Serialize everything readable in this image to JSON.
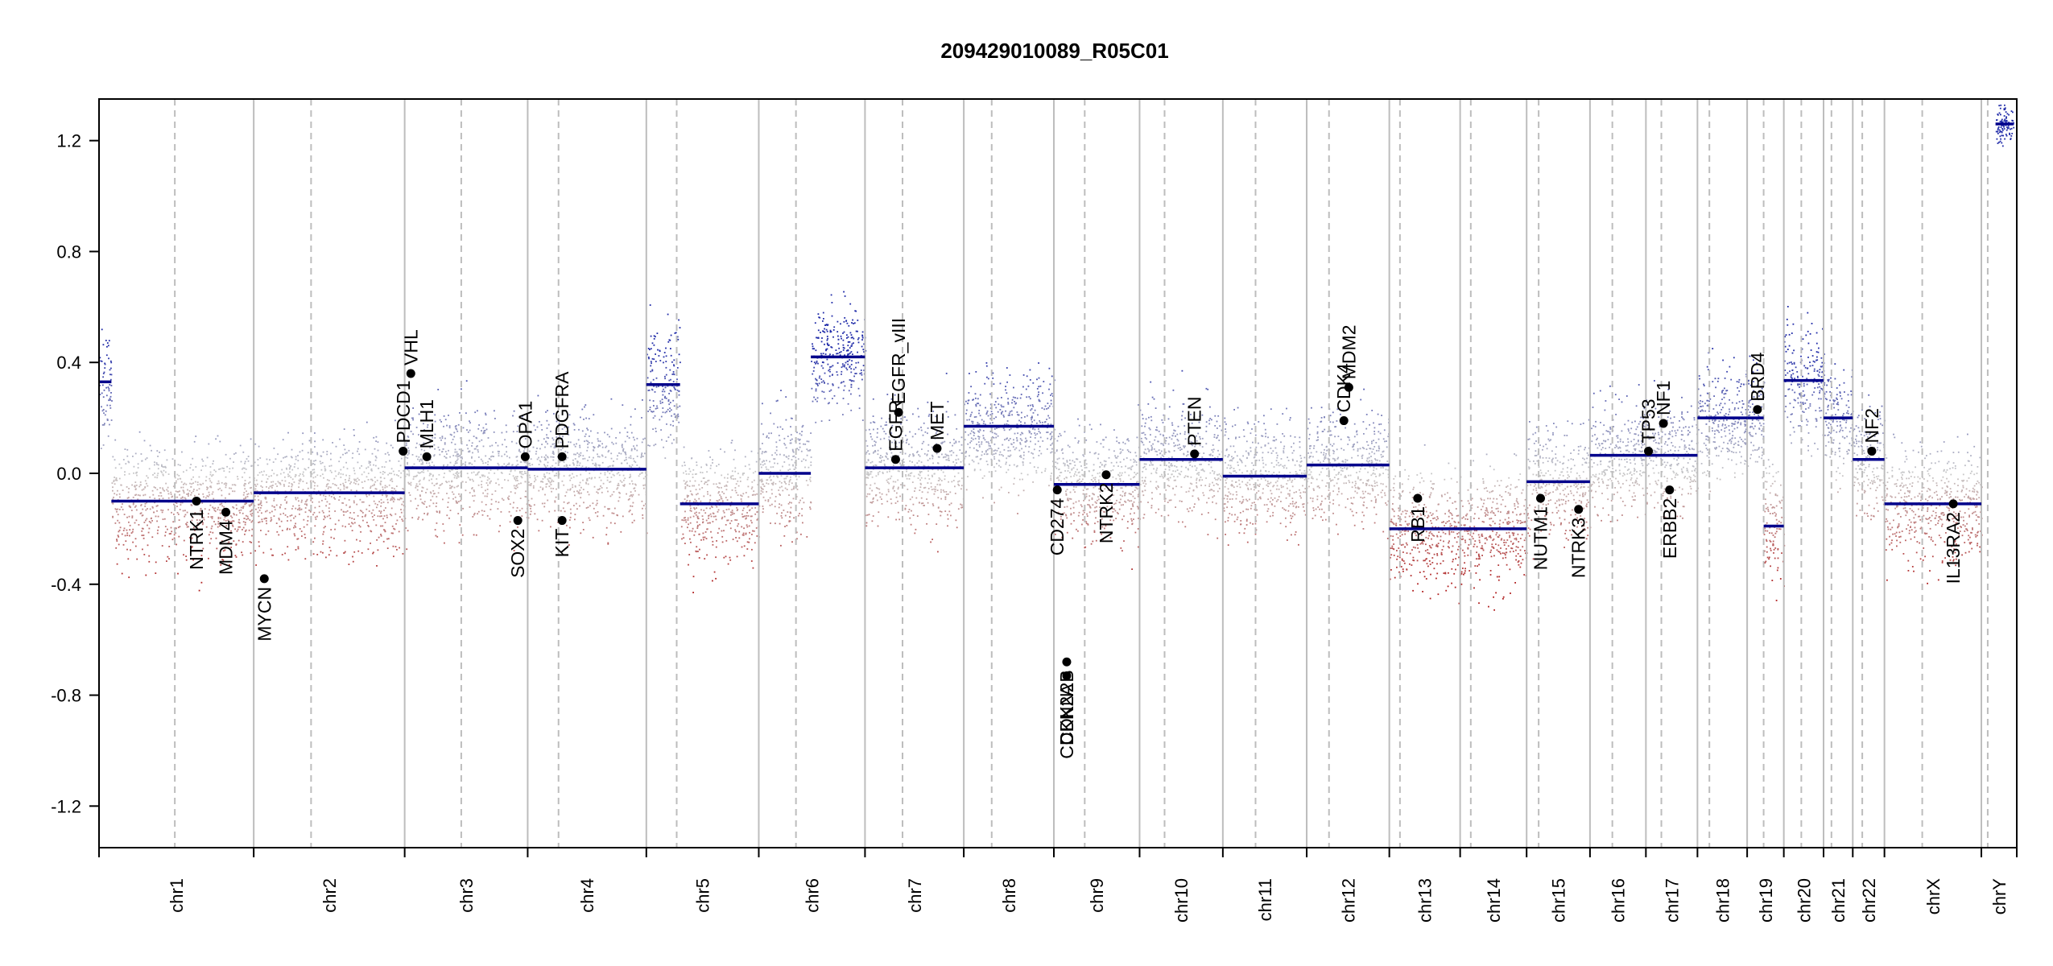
{
  "chart_data": {
    "type": "scatter",
    "title": "209429010089_R05C01",
    "xlabel": "",
    "ylabel": "",
    "ylim": [
      -1.35,
      1.35
    ],
    "y_ticks": [
      "-1.2",
      "-0.8",
      "-0.4",
      "0.0",
      "0.4",
      "0.8",
      "1.2"
    ],
    "y_tick_values": [
      -1.2,
      -0.8,
      -0.4,
      0.0,
      0.4,
      0.8,
      1.2
    ],
    "x_unit": "relative chromosome length (cumulative)",
    "chromosomes": [
      {
        "name": "chr1",
        "size": 249,
        "centromere": 0.49,
        "seg": [
          {
            "from": 0,
            "to": 0.08,
            "value": 0.33
          },
          {
            "from": 0.08,
            "to": 1,
            "value": -0.1
          }
        ]
      },
      {
        "name": "chr2",
        "size": 243,
        "centromere": 0.38,
        "seg": [
          {
            "from": 0,
            "to": 1,
            "value": -0.07
          }
        ]
      },
      {
        "name": "chr3",
        "size": 198,
        "centromere": 0.46,
        "seg": [
          {
            "from": 0,
            "to": 1,
            "value": 0.02
          }
        ]
      },
      {
        "name": "chr4",
        "size": 191,
        "centromere": 0.26,
        "seg": [
          {
            "from": 0,
            "to": 1,
            "value": 0.015
          }
        ]
      },
      {
        "name": "chr5",
        "size": 181,
        "centromere": 0.27,
        "seg": [
          {
            "from": 0,
            "to": 0.3,
            "value": 0.32
          },
          {
            "from": 0.3,
            "to": 1,
            "value": -0.11
          }
        ]
      },
      {
        "name": "chr6",
        "size": 171,
        "centromere": 0.35,
        "seg": [
          {
            "from": 0,
            "to": 0.49,
            "value": 0.0
          },
          {
            "from": 0.49,
            "to": 1,
            "value": 0.42
          }
        ]
      },
      {
        "name": "chr7",
        "size": 159,
        "centromere": 0.38,
        "seg": [
          {
            "from": 0,
            "to": 1,
            "value": 0.02
          }
        ]
      },
      {
        "name": "chr8",
        "size": 145,
        "centromere": 0.31,
        "seg": [
          {
            "from": 0,
            "to": 1,
            "value": 0.17
          }
        ]
      },
      {
        "name": "chr9",
        "size": 138,
        "centromere": 0.36,
        "seg": [
          {
            "from": 0,
            "to": 1,
            "value": -0.04
          }
        ]
      },
      {
        "name": "chr10",
        "size": 134,
        "centromere": 0.3,
        "seg": [
          {
            "from": 0,
            "to": 1,
            "value": 0.05
          }
        ]
      },
      {
        "name": "chr11",
        "size": 135,
        "centromere": 0.39,
        "seg": [
          {
            "from": 0,
            "to": 1,
            "value": -0.01
          }
        ]
      },
      {
        "name": "chr12",
        "size": 133,
        "centromere": 0.27,
        "seg": [
          {
            "from": 0,
            "to": 1,
            "value": 0.03
          }
        ]
      },
      {
        "name": "chr13",
        "size": 114,
        "centromere": 0.15,
        "seg": [
          {
            "from": 0,
            "to": 1,
            "value": -0.2
          }
        ]
      },
      {
        "name": "chr14",
        "size": 107,
        "centromere": 0.16,
        "seg": [
          {
            "from": 0,
            "to": 1,
            "value": -0.2
          }
        ]
      },
      {
        "name": "chr15",
        "size": 102,
        "centromere": 0.19,
        "seg": [
          {
            "from": 0,
            "to": 1,
            "value": -0.03
          }
        ]
      },
      {
        "name": "chr16",
        "size": 90,
        "centromere": 0.4,
        "seg": [
          {
            "from": 0,
            "to": 1,
            "value": 0.065
          }
        ]
      },
      {
        "name": "chr17",
        "size": 83,
        "centromere": 0.3,
        "seg": [
          {
            "from": 0,
            "to": 1,
            "value": 0.065
          }
        ]
      },
      {
        "name": "chr18",
        "size": 80,
        "centromere": 0.24,
        "seg": [
          {
            "from": 0,
            "to": 1,
            "value": 0.2
          }
        ]
      },
      {
        "name": "chr19",
        "size": 59,
        "centromere": 0.45,
        "seg": [
          {
            "from": 0,
            "to": 0.45,
            "value": 0.2
          },
          {
            "from": 0.45,
            "to": 1,
            "value": -0.19
          }
        ]
      },
      {
        "name": "chr20",
        "size": 64,
        "centromere": 0.44,
        "seg": [
          {
            "from": 0,
            "to": 1,
            "value": 0.335
          }
        ]
      },
      {
        "name": "chr21",
        "size": 47,
        "centromere": 0.27,
        "seg": [
          {
            "from": 0,
            "to": 1,
            "value": 0.2
          }
        ]
      },
      {
        "name": "chr22",
        "size": 51,
        "centromere": 0.3,
        "seg": [
          {
            "from": 0,
            "to": 1,
            "value": 0.05
          }
        ]
      },
      {
        "name": "chrX",
        "size": 156,
        "centromere": 0.39,
        "seg": [
          {
            "from": 0,
            "to": 1,
            "value": -0.11
          }
        ]
      },
      {
        "name": "chrY",
        "size": 57,
        "centromere": 0.18,
        "seg": [
          {
            "from": 0.4,
            "to": 0.9,
            "value": 1.26
          }
        ]
      }
    ],
    "genes": [
      {
        "name": "NTRK1",
        "chr": "chr1",
        "pos": 0.63,
        "value": -0.1,
        "label_side": "below"
      },
      {
        "name": "MDM4",
        "chr": "chr1",
        "pos": 0.82,
        "value": -0.14,
        "label_side": "below"
      },
      {
        "name": "MYCN",
        "chr": "chr2",
        "pos": 0.07,
        "value": -0.38,
        "label_side": "below"
      },
      {
        "name": "PDCD1",
        "chr": "chr2",
        "pos": 0.99,
        "value": 0.08,
        "label_side": "above"
      },
      {
        "name": "VHL",
        "chr": "chr3",
        "pos": 0.05,
        "value": 0.36,
        "label_side": "above"
      },
      {
        "name": "MLH1",
        "chr": "chr3",
        "pos": 0.18,
        "value": 0.06,
        "label_side": "above"
      },
      {
        "name": "SOX2",
        "chr": "chr3",
        "pos": 0.92,
        "value": -0.17,
        "label_side": "below"
      },
      {
        "name": "OPA1",
        "chr": "chr3",
        "pos": 0.98,
        "value": 0.06,
        "label_side": "above"
      },
      {
        "name": "PDGFRA",
        "chr": "chr4",
        "pos": 0.29,
        "value": 0.06,
        "label_side": "above"
      },
      {
        "name": "KIT",
        "chr": "chr4",
        "pos": 0.29,
        "value": -0.17,
        "label_side": "below"
      },
      {
        "name": "EGFR",
        "chr": "chr7",
        "pos": 0.31,
        "value": 0.05,
        "label_side": "above"
      },
      {
        "name": "EGFR_vIII",
        "chr": "chr7",
        "pos": 0.34,
        "value": 0.22,
        "label_side": "above"
      },
      {
        "name": "MET",
        "chr": "chr7",
        "pos": 0.73,
        "value": 0.09,
        "label_side": "above"
      },
      {
        "name": "CDKN2A",
        "chr": "chr9",
        "pos": 0.15,
        "value": -0.73,
        "label_side": "below"
      },
      {
        "name": "CDKN2B",
        "chr": "chr9",
        "pos": 0.15,
        "value": -0.68,
        "label_side": "below"
      },
      {
        "name": "CD274",
        "chr": "chr9",
        "pos": 0.04,
        "value": -0.06,
        "label_side": "below"
      },
      {
        "name": "NTRK2",
        "chr": "chr9",
        "pos": 0.61,
        "value": -0.005,
        "label_side": "below"
      },
      {
        "name": "PTEN",
        "chr": "chr10",
        "pos": 0.66,
        "value": 0.07,
        "label_side": "above"
      },
      {
        "name": "CDK4",
        "chr": "chr12",
        "pos": 0.45,
        "value": 0.19,
        "label_side": "above"
      },
      {
        "name": "MDM2",
        "chr": "chr12",
        "pos": 0.51,
        "value": 0.31,
        "label_side": "above"
      },
      {
        "name": "RB1",
        "chr": "chr13",
        "pos": 0.4,
        "value": -0.09,
        "label_side": "below"
      },
      {
        "name": "NUTM1",
        "chr": "chr15",
        "pos": 0.22,
        "value": -0.09,
        "label_side": "below"
      },
      {
        "name": "NTRK3",
        "chr": "chr15",
        "pos": 0.82,
        "value": -0.13,
        "label_side": "below"
      },
      {
        "name": "TP53",
        "chr": "chr17",
        "pos": 0.05,
        "value": 0.08,
        "label_side": "above"
      },
      {
        "name": "NF1",
        "chr": "chr17",
        "pos": 0.34,
        "value": 0.18,
        "label_side": "above"
      },
      {
        "name": "ERBB2",
        "chr": "chr17",
        "pos": 0.46,
        "value": -0.06,
        "label_side": "below"
      },
      {
        "name": "BRD4",
        "chr": "chr19",
        "pos": 0.28,
        "value": 0.23,
        "label_side": "above"
      },
      {
        "name": "NF2",
        "chr": "chr22",
        "pos": 0.6,
        "value": 0.08,
        "label_side": "above"
      },
      {
        "name": "IL13RA2",
        "chr": "chrX",
        "pos": 0.71,
        "value": -0.11,
        "label_side": "below"
      }
    ],
    "colors": {
      "gain": "#1f2aa8",
      "neutral": "#c8c8c8",
      "loss": "#b01e1e",
      "segment": "#00008b",
      "chr_separator": "#bdbdbd",
      "centromere": "#bdbdbd",
      "gene_point": "#000000"
    },
    "grid": false,
    "legend": "none"
  }
}
